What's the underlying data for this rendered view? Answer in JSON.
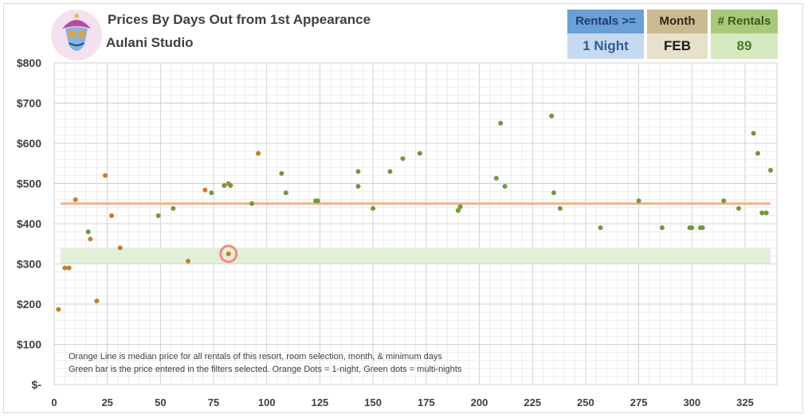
{
  "header": {
    "title": "Prices By Days Out from 1st Appearance",
    "subtitle": "Aulani Studio"
  },
  "logo": {
    "icon": "genie-mascot-icon"
  },
  "filters": {
    "rentals": {
      "label": "Rentals >=",
      "value": "1 Night"
    },
    "month": {
      "label": "Month",
      "value": "FEB"
    },
    "count": {
      "label": "# Rentals",
      "value": "89"
    }
  },
  "notes": [
    "Orange Line is median price for all rentals of this resort, room selection, month, & minimum days",
    "Green bar is the price entered in the filters selected. Orange Dots = 1-night, Green dots = multi-nights"
  ],
  "colors": {
    "one_night": "#c87e22",
    "multi_night": "#6f9a3a",
    "median_line": "#f4b183",
    "price_band": "#e2efd9",
    "highlight_ring": "#f28b82"
  },
  "chart_data": {
    "type": "scatter",
    "xlim": [
      0,
      340
    ],
    "ylim": [
      0,
      800
    ],
    "x_ticks": [
      {
        "value": 0,
        "label": "0"
      },
      {
        "value": 25,
        "label": "25"
      },
      {
        "value": 50,
        "label": "50"
      },
      {
        "value": 75,
        "label": "75"
      },
      {
        "value": 100,
        "label": "100"
      },
      {
        "value": 125,
        "label": "125"
      },
      {
        "value": 150,
        "label": "150"
      },
      {
        "value": 175,
        "label": "175"
      },
      {
        "value": 200,
        "label": "200"
      },
      {
        "value": 225,
        "label": "225"
      },
      {
        "value": 250,
        "label": "250"
      },
      {
        "value": 275,
        "label": "275"
      },
      {
        "value": 300,
        "label": "300"
      },
      {
        "value": 325,
        "label": "325"
      }
    ],
    "y_ticks": [
      {
        "value": 0,
        "label": "$-"
      },
      {
        "value": 100,
        "label": "$100"
      },
      {
        "value": 200,
        "label": "$200"
      },
      {
        "value": 300,
        "label": "$300"
      },
      {
        "value": 400,
        "label": "$400"
      },
      {
        "value": 500,
        "label": "$500"
      },
      {
        "value": 600,
        "label": "$600"
      },
      {
        "value": 700,
        "label": "$700"
      },
      {
        "value": 800,
        "label": "$800"
      }
    ],
    "grid": true,
    "median_price": 450,
    "price_band": [
      300,
      340
    ],
    "highlight_point": {
      "x": 82,
      "y": 325
    },
    "series": [
      {
        "color": "#c87e22",
        "points": [
          [
            2,
            187
          ],
          [
            5,
            290
          ],
          [
            7,
            290
          ],
          [
            10,
            460
          ],
          [
            17,
            362
          ],
          [
            20,
            208
          ],
          [
            24,
            520
          ],
          [
            27,
            420
          ],
          [
            31,
            340
          ],
          [
            63,
            307
          ],
          [
            71,
            484
          ],
          [
            82,
            325
          ],
          [
            82,
            500
          ],
          [
            96,
            575
          ]
        ]
      },
      {
        "color": "#6f9a3a",
        "points": [
          [
            16,
            380
          ],
          [
            49,
            420
          ],
          [
            56,
            438
          ],
          [
            74,
            477
          ],
          [
            80,
            495
          ],
          [
            83,
            495
          ],
          [
            93,
            450
          ],
          [
            107,
            525
          ],
          [
            109,
            477
          ],
          [
            123,
            457
          ],
          [
            124,
            457
          ],
          [
            143,
            530
          ],
          [
            143,
            493
          ],
          [
            150,
            438
          ],
          [
            158,
            530
          ],
          [
            164,
            562
          ],
          [
            172,
            575
          ],
          [
            190,
            433
          ],
          [
            191,
            442
          ],
          [
            208,
            513
          ],
          [
            210,
            650
          ],
          [
            212,
            493
          ],
          [
            234,
            668
          ],
          [
            235,
            477
          ],
          [
            238,
            438
          ],
          [
            257,
            390
          ],
          [
            275,
            457
          ],
          [
            286,
            390
          ],
          [
            299,
            390
          ],
          [
            300,
            390
          ],
          [
            304,
            390
          ],
          [
            305,
            390
          ],
          [
            315,
            457
          ],
          [
            322,
            438
          ],
          [
            329,
            625
          ],
          [
            331,
            575
          ],
          [
            333,
            427
          ],
          [
            335,
            427
          ],
          [
            337,
            533
          ]
        ]
      }
    ]
  }
}
